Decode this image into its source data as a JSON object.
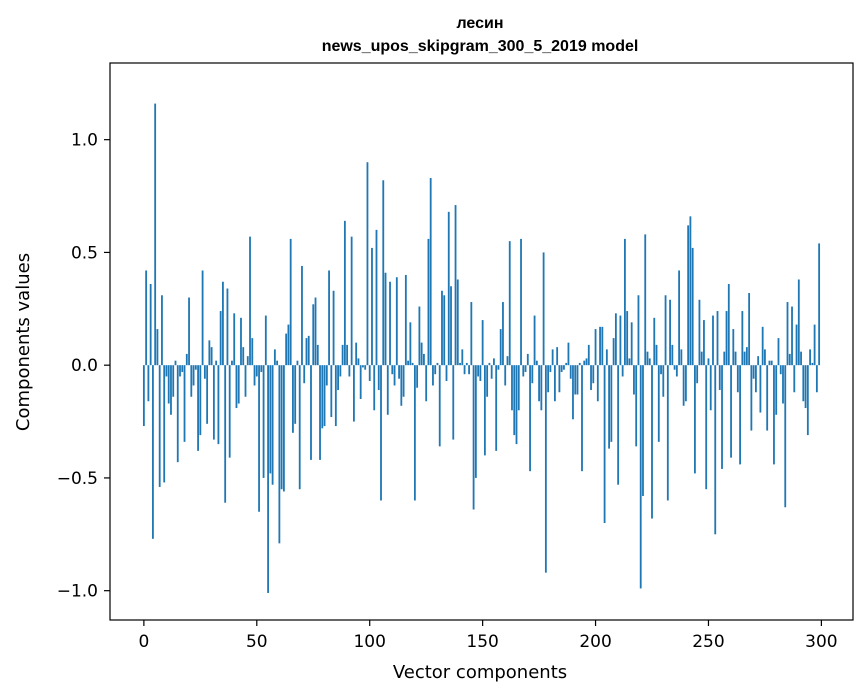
{
  "chart_data": {
    "type": "bar",
    "title_line1": "лесин",
    "title_line2": "news_upos_skipgram_300_5_2019 model",
    "xlabel": "Vector components",
    "ylabel": "Components values",
    "xlim": [
      -15,
      314
    ],
    "ylim": [
      -1.13,
      1.34
    ],
    "xticks": [
      0,
      50,
      100,
      150,
      200,
      250,
      300
    ],
    "xtick_labels": [
      "0",
      "50",
      "100",
      "150",
      "200",
      "250",
      "300"
    ],
    "yticks": [
      -1.0,
      -0.5,
      0.0,
      0.5,
      1.0
    ],
    "ytick_labels": [
      "−1.0",
      "−0.5",
      "0.0",
      "0.5",
      "1.0"
    ],
    "grid": false,
    "bar_color": "#1f77b4",
    "values": [
      -0.27,
      0.42,
      -0.16,
      0.36,
      -0.77,
      1.16,
      0.16,
      -0.54,
      0.31,
      -0.52,
      -0.05,
      -0.17,
      -0.22,
      -0.14,
      0.02,
      -0.43,
      -0.05,
      -0.03,
      -0.34,
      0.05,
      0.3,
      -0.14,
      -0.09,
      -0.02,
      -0.38,
      -0.31,
      0.42,
      -0.06,
      -0.26,
      0.11,
      0.08,
      -0.33,
      0.02,
      -0.35,
      0.24,
      0.37,
      -0.61,
      0.34,
      -0.41,
      0.02,
      0.23,
      -0.19,
      -0.17,
      0.21,
      0.08,
      -0.14,
      0.04,
      0.57,
      0.12,
      -0.09,
      -0.05,
      -0.65,
      -0.03,
      -0.5,
      0.22,
      -1.01,
      -0.48,
      -0.53,
      0.07,
      0.02,
      -0.79,
      -0.55,
      -0.56,
      0.14,
      0.18,
      0.56,
      -0.3,
      -0.26,
      0.02,
      -0.55,
      0.44,
      -0.08,
      0.12,
      0.13,
      -0.42,
      0.27,
      0.3,
      0.09,
      -0.42,
      -0.28,
      -0.27,
      -0.09,
      0.42,
      -0.23,
      0.33,
      -0.27,
      -0.11,
      -0.05,
      0.09,
      0.64,
      0.09,
      -0.05,
      0.57,
      -0.25,
      0.1,
      0.03,
      -0.15,
      -0.01,
      -0.02,
      0.9,
      -0.07,
      0.52,
      -0.2,
      0.6,
      -0.11,
      -0.6,
      0.82,
      0.41,
      -0.22,
      0.37,
      -0.04,
      -0.09,
      0.39,
      -0.06,
      -0.18,
      -0.14,
      0.4,
      0.02,
      0.19,
      0.01,
      -0.6,
      -0.1,
      0.26,
      0.1,
      0.05,
      -0.16,
      0.56,
      0.83,
      -0.09,
      -0.04,
      0.01,
      -0.36,
      0.33,
      0.31,
      -0.07,
      0.68,
      0.35,
      -0.33,
      0.71,
      0.38,
      0.01,
      0.07,
      -0.04,
      0.01,
      -0.04,
      0.28,
      -0.64,
      -0.5,
      -0.05,
      -0.07,
      0.2,
      -0.4,
      -0.14,
      0.01,
      -0.06,
      0.03,
      -0.38,
      -0.02,
      0.16,
      0.28,
      -0.09,
      0.04,
      0.55,
      -0.2,
      -0.31,
      -0.35,
      -0.2,
      0.56,
      -0.05,
      -0.03,
      0.05,
      -0.47,
      -0.08,
      0.22,
      0.02,
      -0.16,
      -0.2,
      0.5,
      -0.92,
      -0.12,
      -0.03,
      0.07,
      -0.16,
      0.08,
      -0.12,
      -0.03,
      -0.02,
      0.01,
      0.1,
      -0.06,
      -0.24,
      -0.13,
      -0.13,
      0.01,
      -0.47,
      0.02,
      0.03,
      0.09,
      -0.11,
      -0.08,
      0.16,
      -0.16,
      0.17,
      0.17,
      -0.7,
      0.07,
      -0.37,
      -0.34,
      0.12,
      0.23,
      -0.53,
      0.22,
      -0.05,
      0.56,
      0.24,
      0.03,
      0.19,
      -0.13,
      -0.36,
      0.31,
      -0.99,
      -0.58,
      0.58,
      0.06,
      0.03,
      -0.68,
      0.21,
      0.09,
      -0.34,
      -0.04,
      -0.14,
      0.31,
      -0.6,
      0.29,
      0.09,
      -0.02,
      -0.05,
      0.42,
      0.07,
      -0.18,
      -0.16,
      0.62,
      0.66,
      0.52,
      -0.48,
      -0.08,
      0.29,
      0.06,
      0.2,
      -0.55,
      0.03,
      -0.2,
      0.22,
      -0.75,
      0.24,
      -0.11,
      -0.46,
      0.06,
      0.24,
      0.36,
      -0.41,
      0.16,
      0.06,
      -0.12,
      -0.44,
      0.24,
      0.06,
      0.08,
      0.32,
      -0.29,
      -0.06,
      -0.12,
      0.04,
      -0.21,
      0.17,
      0.07,
      -0.29,
      0.02,
      0.02,
      -0.44,
      -0.22,
      0.12,
      -0.04,
      -0.17,
      -0.63,
      0.28,
      0.05,
      0.26,
      -0.12,
      0.18,
      0.38,
      0.06,
      -0.16,
      -0.19,
      -0.31,
      0.07,
      0.01,
      0.18,
      -0.12,
      0.54
    ]
  }
}
